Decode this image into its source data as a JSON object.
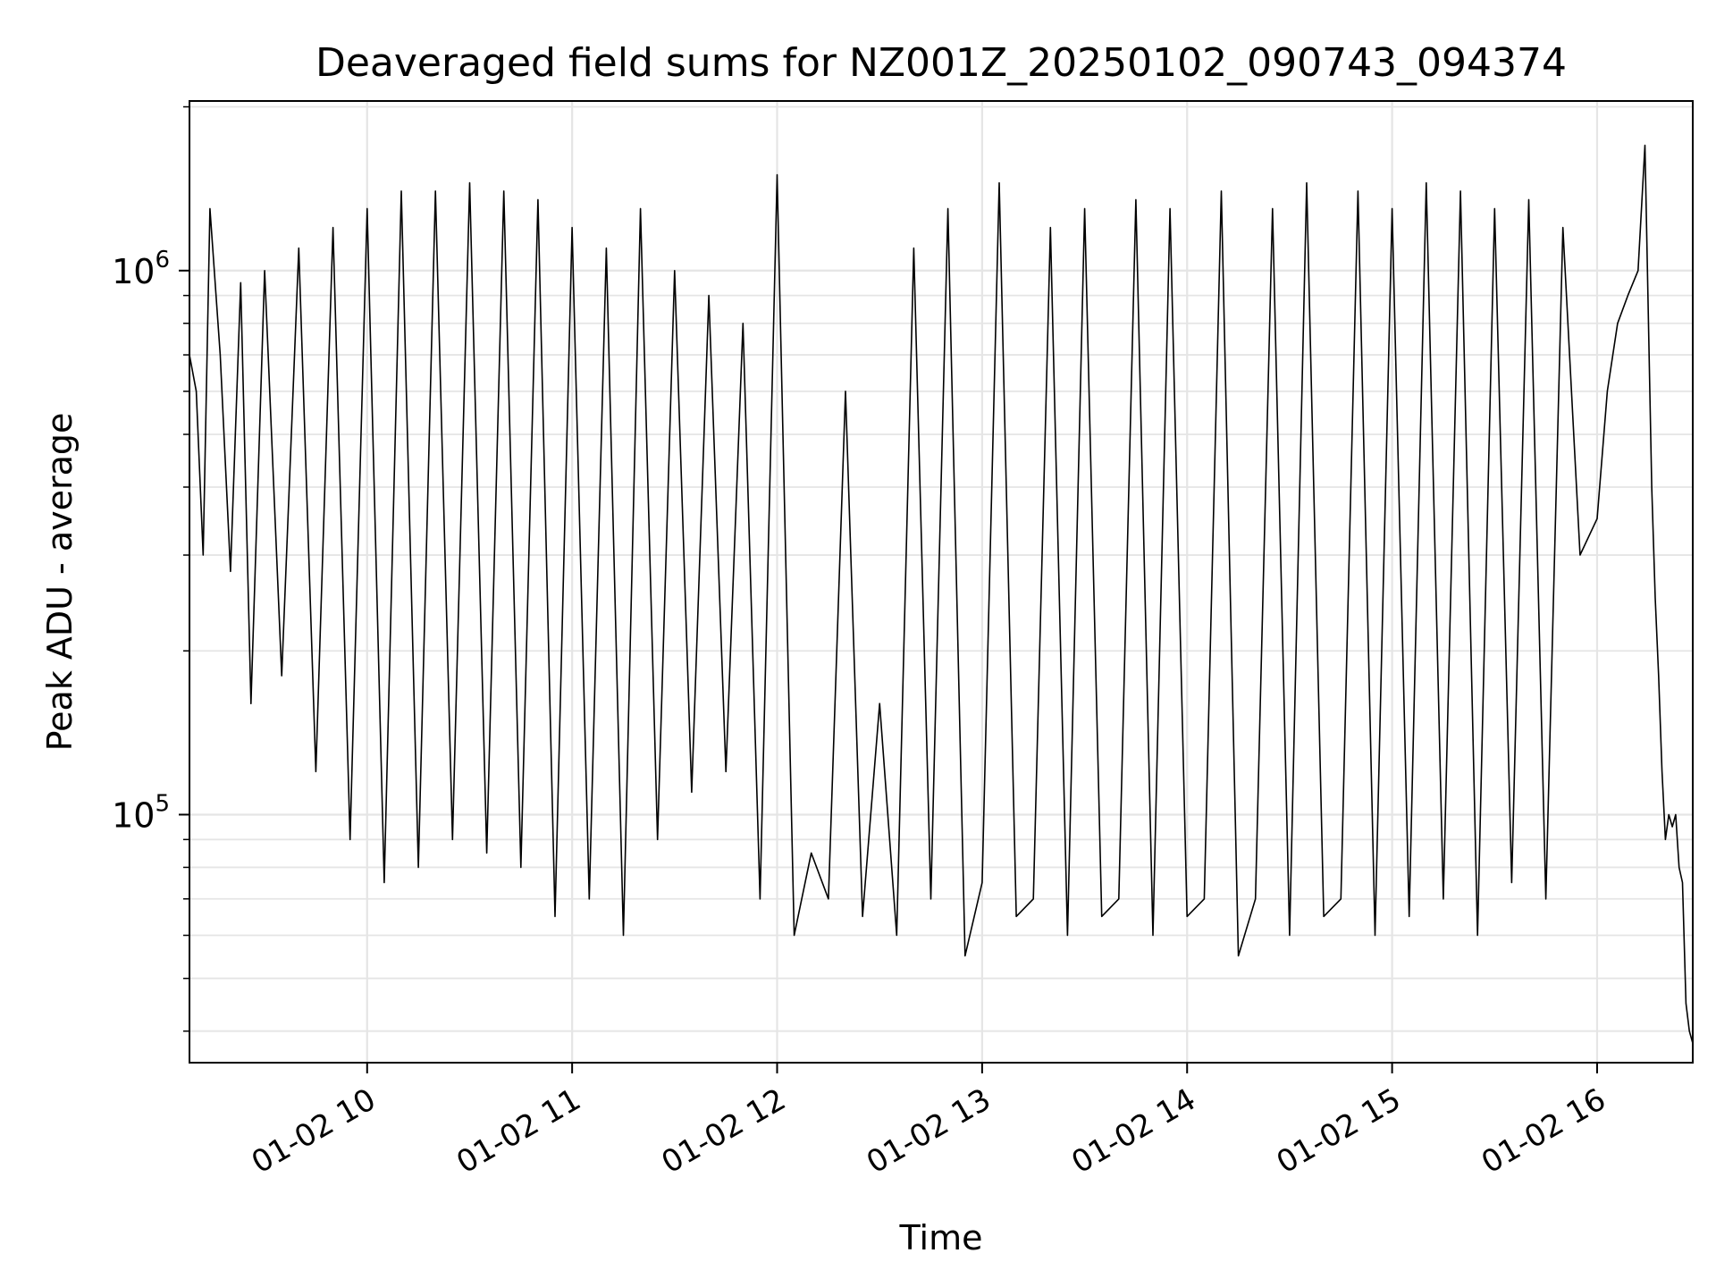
{
  "chart_data": {
    "type": "line",
    "title": "Deaveraged field sums for NZ001Z_20250102_090743_094374",
    "xlabel": "Time",
    "ylabel": "Peak ADU - average",
    "x_tick_labels": [
      "01-02 10",
      "01-02 11",
      "01-02 12",
      "01-02 13",
      "01-02 14",
      "01-02 15",
      "01-02 16"
    ],
    "y_tick_labels": [
      {
        "base": "10",
        "exp": "5"
      },
      {
        "base": "10",
        "exp": "6"
      }
    ],
    "y_scale": "log",
    "xlim": [
      "01-02 09:08",
      "01-02 16:28"
    ],
    "ylim": [
      35000,
      2050000
    ],
    "grid": true,
    "line_color": "#000000",
    "series": [
      {
        "points": [
          [
            "01-02 09:08",
            700000
          ],
          [
            "01-02 09:10",
            600000
          ],
          [
            "01-02 09:12",
            300000
          ],
          [
            "01-02 09:14",
            1300000
          ],
          [
            "01-02 09:17",
            700000
          ],
          [
            "01-02 09:20",
            280000
          ],
          [
            "01-02 09:23",
            950000
          ],
          [
            "01-02 09:26",
            160000
          ],
          [
            "01-02 09:30",
            1000000
          ],
          [
            "01-02 09:35",
            180000
          ],
          [
            "01-02 09:40",
            1100000
          ],
          [
            "01-02 09:45",
            120000
          ],
          [
            "01-02 09:50",
            1200000
          ],
          [
            "01-02 09:55",
            90000
          ],
          [
            "01-02 10:00",
            1300000
          ],
          [
            "01-02 10:05",
            75000
          ],
          [
            "01-02 10:10",
            1400000
          ],
          [
            "01-02 10:15",
            80000
          ],
          [
            "01-02 10:20",
            1400000
          ],
          [
            "01-02 10:25",
            90000
          ],
          [
            "01-02 10:30",
            1450000
          ],
          [
            "01-02 10:35",
            85000
          ],
          [
            "01-02 10:40",
            1400000
          ],
          [
            "01-02 10:45",
            80000
          ],
          [
            "01-02 10:50",
            1350000
          ],
          [
            "01-02 10:55",
            65000
          ],
          [
            "01-02 11:00",
            1200000
          ],
          [
            "01-02 11:05",
            70000
          ],
          [
            "01-02 11:10",
            1100000
          ],
          [
            "01-02 11:15",
            60000
          ],
          [
            "01-02 11:20",
            1300000
          ],
          [
            "01-02 11:25",
            90000
          ],
          [
            "01-02 11:30",
            1000000
          ],
          [
            "01-02 11:35",
            110000
          ],
          [
            "01-02 11:40",
            900000
          ],
          [
            "01-02 11:45",
            120000
          ],
          [
            "01-02 11:50",
            800000
          ],
          [
            "01-02 11:55",
            70000
          ],
          [
            "01-02 12:00",
            1500000
          ],
          [
            "01-02 12:05",
            60000
          ],
          [
            "01-02 12:10",
            85000
          ],
          [
            "01-02 12:15",
            70000
          ],
          [
            "01-02 12:20",
            600000
          ],
          [
            "01-02 12:25",
            65000
          ],
          [
            "01-02 12:30",
            160000
          ],
          [
            "01-02 12:35",
            60000
          ],
          [
            "01-02 12:40",
            1100000
          ],
          [
            "01-02 12:45",
            70000
          ],
          [
            "01-02 12:50",
            1300000
          ],
          [
            "01-02 12:55",
            55000
          ],
          [
            "01-02 13:00",
            75000
          ],
          [
            "01-02 13:05",
            1450000
          ],
          [
            "01-02 13:10",
            65000
          ],
          [
            "01-02 13:15",
            70000
          ],
          [
            "01-02 13:20",
            1200000
          ],
          [
            "01-02 13:25",
            60000
          ],
          [
            "01-02 13:30",
            1300000
          ],
          [
            "01-02 13:35",
            65000
          ],
          [
            "01-02 13:40",
            70000
          ],
          [
            "01-02 13:45",
            1350000
          ],
          [
            "01-02 13:50",
            60000
          ],
          [
            "01-02 13:55",
            1300000
          ],
          [
            "01-02 14:00",
            65000
          ],
          [
            "01-02 14:05",
            70000
          ],
          [
            "01-02 14:10",
            1400000
          ],
          [
            "01-02 14:15",
            55000
          ],
          [
            "01-02 14:20",
            70000
          ],
          [
            "01-02 14:25",
            1300000
          ],
          [
            "01-02 14:30",
            60000
          ],
          [
            "01-02 14:35",
            1450000
          ],
          [
            "01-02 14:40",
            65000
          ],
          [
            "01-02 14:45",
            70000
          ],
          [
            "01-02 14:50",
            1400000
          ],
          [
            "01-02 14:55",
            60000
          ],
          [
            "01-02 15:00",
            1300000
          ],
          [
            "01-02 15:05",
            65000
          ],
          [
            "01-02 15:10",
            1450000
          ],
          [
            "01-02 15:15",
            70000
          ],
          [
            "01-02 15:20",
            1400000
          ],
          [
            "01-02 15:25",
            60000
          ],
          [
            "01-02 15:30",
            1300000
          ],
          [
            "01-02 15:35",
            75000
          ],
          [
            "01-02 15:40",
            1350000
          ],
          [
            "01-02 15:45",
            70000
          ],
          [
            "01-02 15:50",
            1200000
          ],
          [
            "01-02 15:55",
            300000
          ],
          [
            "01-02 16:00",
            350000
          ],
          [
            "01-02 16:03",
            600000
          ],
          [
            "01-02 16:06",
            800000
          ],
          [
            "01-02 16:09",
            900000
          ],
          [
            "01-02 16:12",
            1000000
          ],
          [
            "01-02 16:14",
            1700000
          ],
          [
            "01-02 16:16",
            400000
          ],
          [
            "01-02 16:17",
            250000
          ],
          [
            "01-02 16:18",
            180000
          ],
          [
            "01-02 16:19",
            120000
          ],
          [
            "01-02 16:20",
            90000
          ],
          [
            "01-02 16:21",
            100000
          ],
          [
            "01-02 16:22",
            95000
          ],
          [
            "01-02 16:23",
            100000
          ],
          [
            "01-02 16:24",
            80000
          ],
          [
            "01-02 16:25",
            75000
          ],
          [
            "01-02 16:26",
            45000
          ],
          [
            "01-02 16:27",
            40000
          ],
          [
            "01-02 16:28",
            38000
          ]
        ]
      }
    ]
  }
}
